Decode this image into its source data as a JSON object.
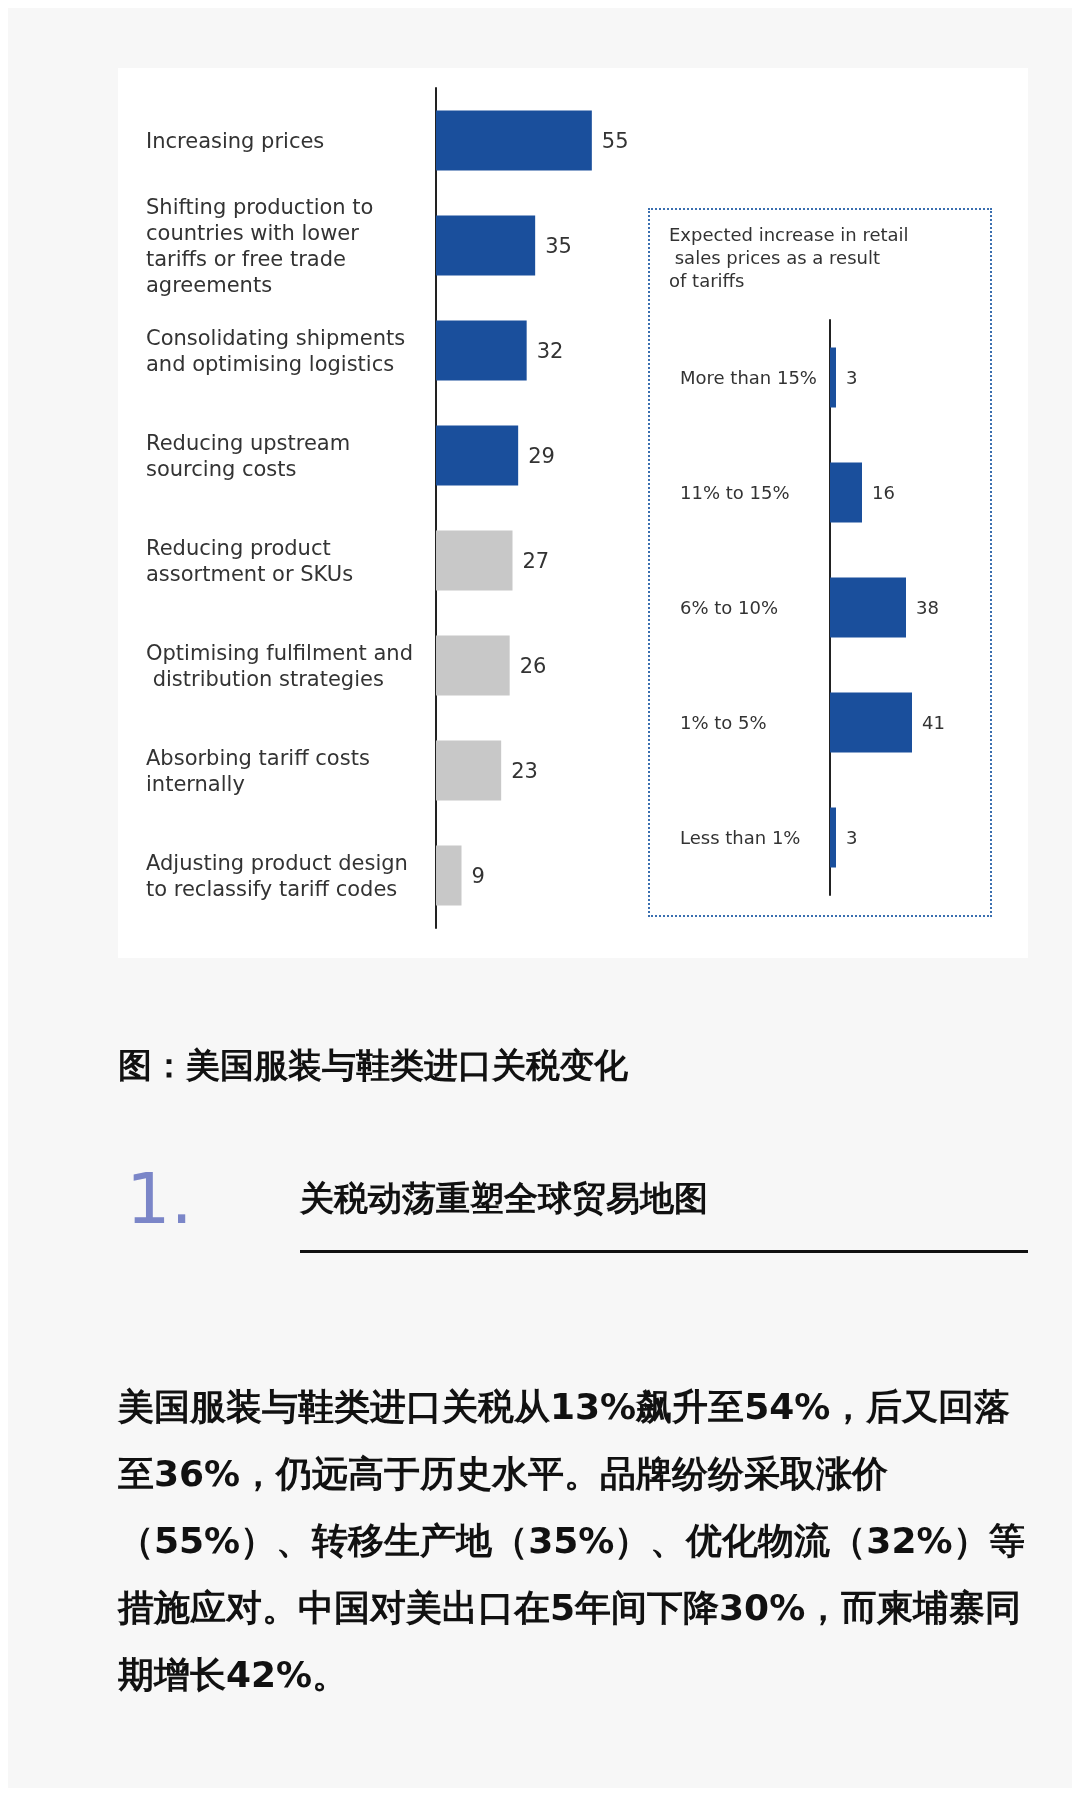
{
  "chart_data": [
    {
      "type": "bar",
      "orientation": "horizontal",
      "categories": [
        "Increasing prices",
        "Shifting production to countries with lower tariffs or free trade agreements",
        "Consolidating shipments and optimising logistics",
        "Reducing upstream sourcing costs",
        "Reducing product assortment or SKUs",
        "Optimising fulfilment and distribution strategies",
        "Absorbing tariff costs internally",
        "Adjusting product design to reclassify tariff codes"
      ],
      "values": [
        55,
        35,
        32,
        29,
        27,
        26,
        23,
        9
      ],
      "colors": [
        "#1a4f9c",
        "#1a4f9c",
        "#1a4f9c",
        "#1a4f9c",
        "#c8c8c8",
        "#c8c8c8",
        "#c8c8c8",
        "#c8c8c8"
      ],
      "data_labels": true,
      "annotations": [
        "图：美国服装与鞋类进口关税变化",
        "1.",
        "关税动荡重塑全球贸易地图",
        "美国服装与鞋类进口关税从13%飙升至54%，后又回落至36%，仍远高于历史水平。品牌纷纷采取涨价（55%）、转移生产地（35%）、优化物流（32%）等措施应对。中国对美出口在5年间下降30%，而柬埔寨同期增长42%。"
      ]
    },
    {
      "type": "bar",
      "orientation": "horizontal",
      "title": "Expected increase in retail sales prices as a result of tariffs",
      "categories": [
        "More than 15%",
        "11% to 15%",
        "6% to 10%",
        "1% to 5%",
        "Less than 1%"
      ],
      "values": [
        3,
        16,
        38,
        41,
        3
      ],
      "color": "#1a4f9c",
      "data_labels": true
    }
  ]
}
